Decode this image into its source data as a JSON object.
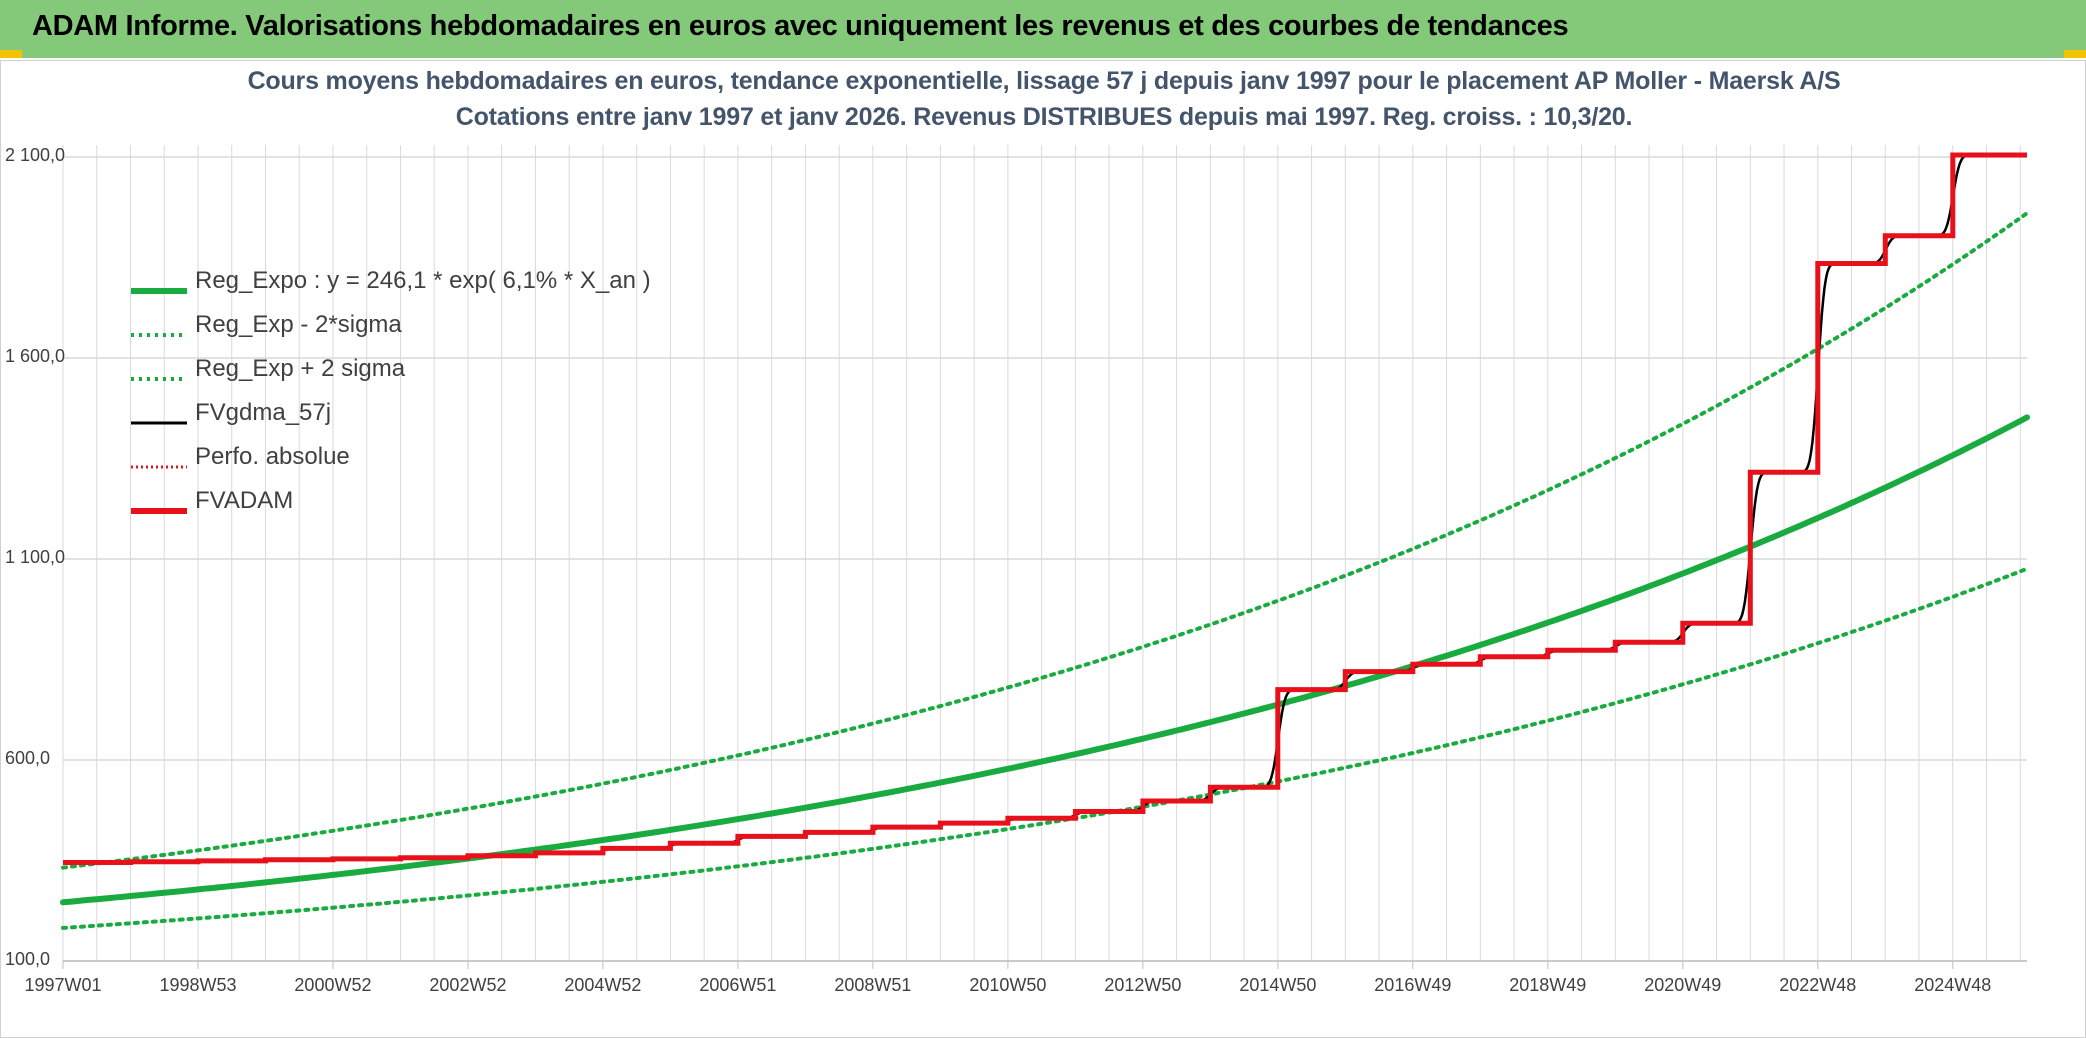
{
  "banner": {
    "title": "ADAM Informe. Valorisations hebdomadaires en euros avec uniquement les revenus et des courbes de tendances"
  },
  "colors": {
    "banner_bg": "#84c97a",
    "corner_accent": "#f2c400",
    "title_text": "#44546a",
    "reg_expo": "#1aab40",
    "fvgdma": "#000000",
    "fvadam": "#e8101a",
    "grid": "#d9d9d9"
  },
  "chart_data": {
    "type": "line",
    "title": "Cours moyens hebdomadaires en euros, tendance exponentielle, lissage 57 j depuis janv 1997 pour le placement AP Moller - Maersk A/S",
    "subtitle": "Cotations entre janv 1997 et janv 2026. Revenus DISTRIBUES depuis mai 1997. Reg. croiss. : 10,3/20.",
    "xlabel": "",
    "ylabel": "",
    "x_ticks": [
      "1997W01",
      "1998W53",
      "2000W52",
      "2002W52",
      "2004W52",
      "2006W51",
      "2008W51",
      "2010W50",
      "2012W50",
      "2014W50",
      "2016W49",
      "2018W49",
      "2020W49",
      "2022W48",
      "2024W48"
    ],
    "x_tick_years": [
      1997.0,
      1999.0,
      2001.0,
      2003.0,
      2005.0,
      2007.0,
      2009.0,
      2011.0,
      2013.0,
      2015.0,
      2017.0,
      2019.0,
      2021.0,
      2023.0,
      2025.0
    ],
    "xlim": [
      1997.0,
      2026.1
    ],
    "y_ticks": [
      "100,0",
      "600,0",
      "1 100,0",
      "1 600,0",
      "2 100,0"
    ],
    "y_tick_values": [
      100,
      600,
      1100,
      1600,
      2100
    ],
    "ylim": [
      100,
      2100
    ],
    "grid": true,
    "legend_position": "top-left",
    "regression": {
      "a": 246.1,
      "rate": 0.061,
      "x0": 1997.0
    },
    "series": [
      {
        "name": "Reg_Expo : y = 246,1 * exp( 6,1% *  X_an )",
        "kind": "regression",
        "offset": 0,
        "style": "solid-thick"
      },
      {
        "name": "Reg_Exp - 2*sigma",
        "kind": "regression",
        "offset": -0.3,
        "style": "dotted"
      },
      {
        "name": "Reg_Exp + 2 sigma",
        "kind": "regression",
        "offset": 0.3,
        "style": "dotted"
      },
      {
        "name": "FVgdma_57j",
        "kind": "smoothed",
        "style": "solid-thin"
      },
      {
        "name": "Perfo. absolue",
        "kind": "legend-only",
        "style": "dotted-red"
      },
      {
        "name": "FVADAM",
        "kind": "step",
        "style": "solid-red",
        "points": [
          [
            1997.0,
            345
          ],
          [
            1998.0,
            347
          ],
          [
            1999.0,
            349
          ],
          [
            2000.0,
            352
          ],
          [
            2001.0,
            354
          ],
          [
            2002.0,
            357
          ],
          [
            2003.0,
            362
          ],
          [
            2004.0,
            369
          ],
          [
            2005.0,
            380
          ],
          [
            2006.0,
            393
          ],
          [
            2007.0,
            410
          ],
          [
            2008.0,
            420
          ],
          [
            2009.0,
            433
          ],
          [
            2010.0,
            443
          ],
          [
            2011.0,
            455
          ],
          [
            2012.0,
            472
          ],
          [
            2013.0,
            498
          ],
          [
            2014.0,
            532
          ],
          [
            2015.0,
            775
          ],
          [
            2016.0,
            820
          ],
          [
            2017.0,
            838
          ],
          [
            2018.0,
            857
          ],
          [
            2019.0,
            873
          ],
          [
            2020.0,
            893
          ],
          [
            2021.0,
            940
          ],
          [
            2022.0,
            1316
          ],
          [
            2023.0,
            1835
          ],
          [
            2024.0,
            1904
          ],
          [
            2025.0,
            2105
          ],
          [
            2026.1,
            2105
          ]
        ]
      }
    ]
  }
}
